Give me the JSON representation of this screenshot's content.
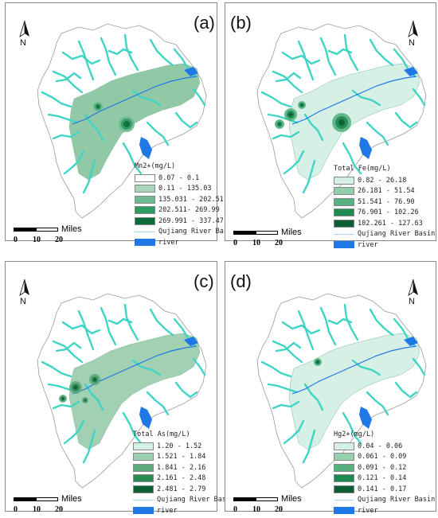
{
  "panels": [
    {
      "label": "(a)",
      "legend_title": "Mn2+(mg/L)",
      "classes": [
        {
          "range": "0.07 - 0.1",
          "color": "#ffffff"
        },
        {
          "range": "0.11 - 135.03",
          "color": "#a8d5bb"
        },
        {
          "range": "135.031 - 202.51",
          "color": "#6fba8e"
        },
        {
          "range": "202.511- 269.99",
          "color": "#2f9a63"
        },
        {
          "range": "269.991 - 337.47",
          "color": "#0d6b3a"
        }
      ],
      "base_color": "#8cc7a3"
    },
    {
      "label": "(b)",
      "legend_title": "Total Fe(mg/L)",
      "classes": [
        {
          "range": "0.82 - 26.18",
          "color": "#d4f0e4"
        },
        {
          "range": "26.181 - 51.54",
          "color": "#93cfae"
        },
        {
          "range": "51.541 - 76.90",
          "color": "#55b17f"
        },
        {
          "range": "76.901 - 102.26",
          "color": "#1f8a52"
        },
        {
          "range": "102.261 - 127.63",
          "color": "#0b5e31"
        }
      ],
      "base_color": "#d4f0e4"
    },
    {
      "label": "(c)",
      "legend_title": "Total As(mg/L)",
      "classes": [
        {
          "range": "1.20 - 1.52",
          "color": "#d4f0e4"
        },
        {
          "range": "1.521 - 1.84",
          "color": "#9ccfae"
        },
        {
          "range": "1.841 - 2.16",
          "color": "#5eaa7c"
        },
        {
          "range": "2.161 - 2.48",
          "color": "#2c8a55"
        },
        {
          "range": "2.481 - 2.79",
          "color": "#0d5e30"
        }
      ],
      "base_color": "#9ccfae"
    },
    {
      "label": "(d)",
      "legend_title": "Hg2+(mg/L)",
      "classes": [
        {
          "range": "0.04 - 0.06",
          "color": "#d4f0e4"
        },
        {
          "range": "0.061 - 0.09",
          "color": "#95d0af"
        },
        {
          "range": "0.091 - 0.12",
          "color": "#55b07f"
        },
        {
          "range": "0.121 - 0.14",
          "color": "#1a8a4e"
        },
        {
          "range": "0.141 - 0.17",
          "color": "#0b5e31"
        }
      ],
      "base_color": "#d4f0e4"
    }
  ],
  "common": {
    "basin_label": "Qujiang River Basin",
    "river_label": "river",
    "north_label": "N",
    "scale_unit": "Miles",
    "scale_ticks": [
      "0",
      "10",
      "20"
    ],
    "river_color": "#1f78e6",
    "tributary_color": "#3fd4c4"
  }
}
